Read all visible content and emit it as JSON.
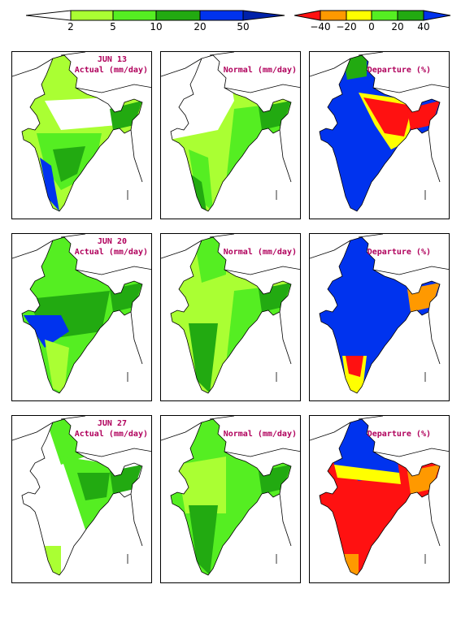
{
  "colorbar_rain": {
    "ticks": [
      "2",
      "5",
      "10",
      "20",
      "50"
    ],
    "colors": [
      "#ffffff",
      "#aaff33",
      "#55ee22",
      "#22aa11",
      "#0033ee",
      "#0022aa"
    ]
  },
  "colorbar_dep": {
    "ticks": [
      "−40",
      "−20",
      "0",
      "20",
      "40"
    ],
    "colors": [
      "#ff1111",
      "#ff9900",
      "#ffff00",
      "#55ee22",
      "#22aa11",
      "#0033ee"
    ]
  },
  "rows": [
    {
      "date": "JUN 13",
      "actual_label": "Actual (mm/day)",
      "normal_label": "Normal (mm/day)",
      "departure_label": "Departure (%)"
    },
    {
      "date": "JUN 20",
      "actual_label": "Actual (mm/day)",
      "normal_label": "Normal (mm/day)",
      "departure_label": "Departure (%)"
    },
    {
      "date": "JUN 27",
      "actual_label": "Actual (mm/day)",
      "normal_label": "Normal (mm/day)",
      "departure_label": "Departure (%)"
    }
  ],
  "palette": {
    "white": "#ffffff",
    "lightgreen": "#aaff33",
    "green": "#55ee22",
    "darkgreen": "#22aa11",
    "blue": "#0033ee",
    "red": "#ff1111",
    "orange": "#ff9900",
    "yellow": "#ffff00",
    "label": "#b0005c"
  }
}
